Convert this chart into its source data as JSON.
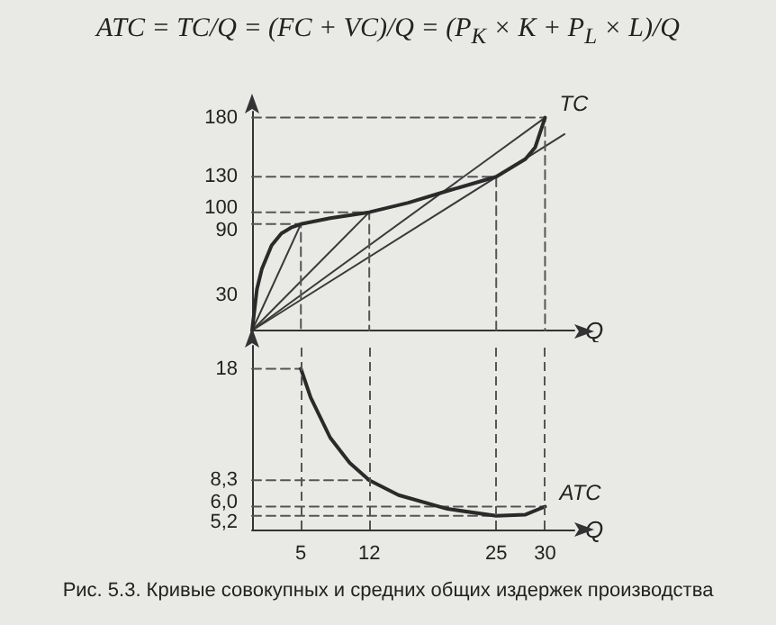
{
  "chart_data": [
    {
      "type": "line",
      "title": "ATC = TC/Q = (FC + VC)/Q = (P$_{K}$ × K + P$_{L}$ × L)/Q",
      "xlabel": "Q",
      "xlim": [
        0,
        33
      ],
      "xticks": [
        5,
        12,
        25,
        30
      ],
      "ylim": [
        0,
        185
      ],
      "yticks": [
        30,
        90,
        100,
        130,
        180
      ],
      "tick_labels": "y",
      "grid": false,
      "marker": "none",
      "line_style": "solid",
      "series": [
        {
          "name": "TC",
          "color": "#2a2a2a",
          "x": [
            0,
            0.5,
            1,
            2,
            3,
            4,
            5,
            8,
            12,
            16,
            20,
            25,
            28,
            29,
            30
          ],
          "values": [
            0,
            35,
            52,
            72,
            82,
            87,
            90,
            95,
            100,
            108,
            118,
            130,
            145,
            155,
            180
          ]
        },
        {
          "color": "#3a3a3a",
          "x": [
            0,
            5
          ],
          "values": [
            0,
            90
          ]
        },
        {
          "color": "#3a3a3a",
          "x": [
            0,
            12
          ],
          "values": [
            0,
            100
          ]
        },
        {
          "color": "#3a3a3a",
          "x": [
            0,
            30
          ],
          "values": [
            0,
            180
          ]
        },
        {
          "color": "#3a3a3a",
          "x": [
            0,
            32
          ],
          "values": [
            0,
            166
          ]
        },
        {
          "color": "#555555",
          "line_style": "dashed",
          "x": [
            0,
            5,
            5
          ],
          "values": [
            90,
            90,
            0
          ]
        },
        {
          "color": "#555555",
          "line_style": "dashed",
          "x": [
            0,
            12,
            12
          ],
          "values": [
            100,
            100,
            0
          ]
        },
        {
          "color": "#555555",
          "line_style": "dashed",
          "x": [
            0,
            25,
            25
          ],
          "values": [
            130,
            130,
            0
          ]
        },
        {
          "color": "#555555",
          "line_style": "dashed",
          "x": [
            0,
            30,
            30
          ],
          "values": [
            180,
            180,
            0
          ]
        }
      ]
    },
    {
      "type": "line",
      "xlabel": "Q",
      "xlim": [
        0,
        33
      ],
      "xticks": [
        5,
        12,
        25,
        30
      ],
      "ylim": [
        4,
        20
      ],
      "yticks": [
        {
          "value": 5.2,
          "label": "5,2"
        },
        {
          "value": 6.0,
          "label": "6,0"
        },
        {
          "value": 8.3,
          "label": "8,3"
        },
        18
      ],
      "grid": false,
      "marker": "none",
      "line_style": "solid",
      "annotations": [
        "Рис. 5.3. Кривые совокупных и средних общих издержек производства"
      ],
      "ref_lines": [
        {
          "axis": "x",
          "value": 5,
          "label": null,
          "color": "#555555",
          "line_style": "dashed"
        },
        {
          "axis": "x",
          "value": 12,
          "label": null,
          "color": "#555555",
          "line_style": "dashed"
        },
        {
          "axis": "x",
          "value": 25,
          "label": null,
          "color": "#555555",
          "line_style": "dashed"
        },
        {
          "axis": "x",
          "value": 30,
          "label": null,
          "color": "#555555",
          "line_style": "dashed"
        }
      ],
      "series": [
        {
          "name": "ATC",
          "color": "#2a2a2a",
          "x": [
            5,
            6,
            8,
            10,
            12,
            15,
            20,
            25,
            28,
            30
          ],
          "values": [
            18,
            15.5,
            12,
            9.8,
            8.3,
            7,
            5.8,
            5.2,
            5.3,
            6.0
          ]
        },
        {
          "color": "#555555",
          "line_style": "dashed",
          "x": [
            0,
            5
          ],
          "values": [
            18,
            18
          ]
        },
        {
          "color": "#555555",
          "line_style": "dashed",
          "x": [
            0,
            12
          ],
          "values": [
            8.3,
            8.3
          ]
        },
        {
          "color": "#555555",
          "line_style": "dashed",
          "x": [
            0,
            30
          ],
          "values": [
            6.0,
            6.0
          ]
        },
        {
          "color": "#555555",
          "line_style": "dashed",
          "x": [
            0,
            25
          ],
          "values": [
            5.2,
            5.2
          ]
        }
      ]
    }
  ]
}
